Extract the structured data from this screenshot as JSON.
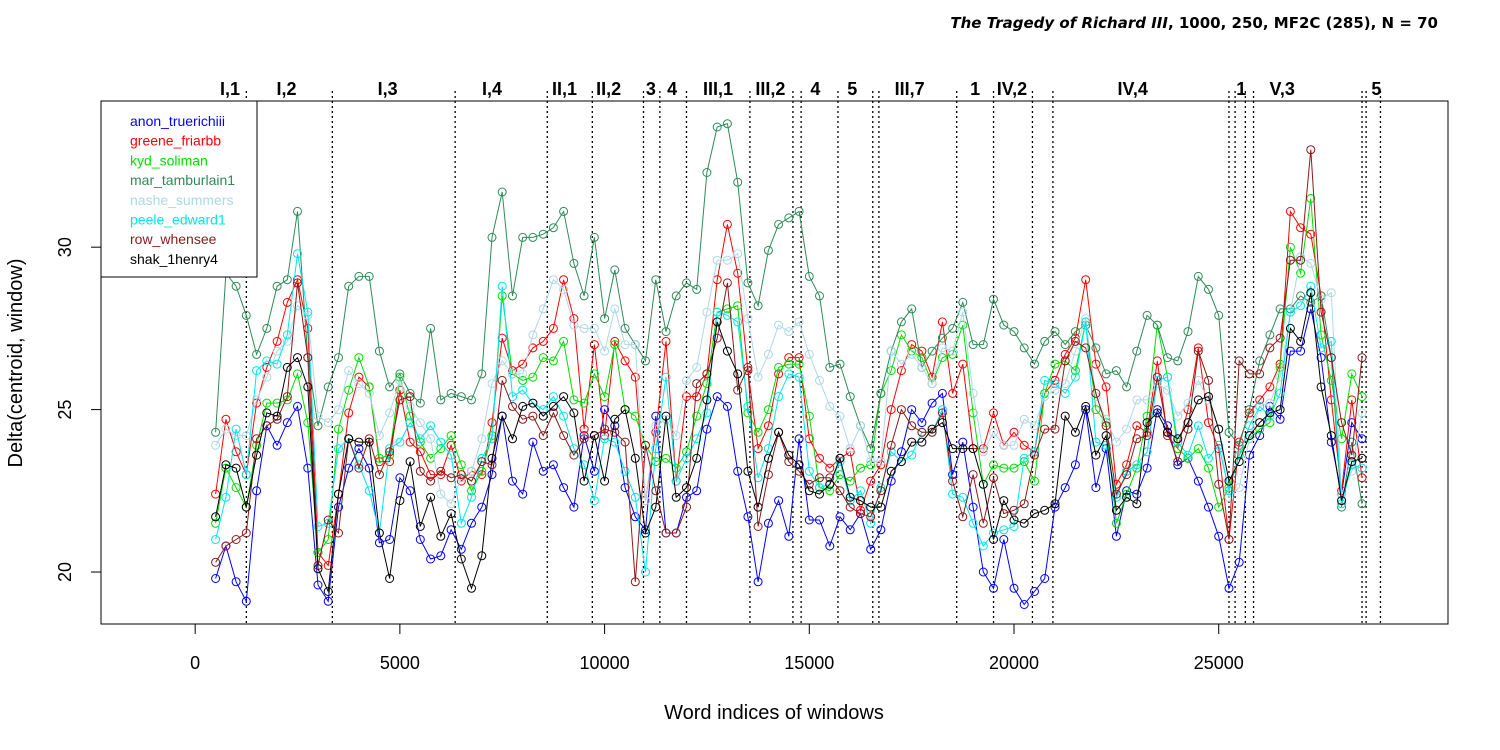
{
  "chart_data": {
    "type": "line",
    "title_italic": "The Tragedy of Richard III",
    "title_rest": ", 1000, 250, MF2C (285), N = 70",
    "xlabel": "Word indices of windows",
    "ylabel": "Delta(centroid, window)",
    "xlim": [
      -2300,
      30600
    ],
    "ylim": [
      18.4,
      34.5
    ],
    "x_ticks": [
      0,
      5000,
      10000,
      15000,
      20000,
      25000
    ],
    "y_ticks": [
      20,
      25,
      30
    ],
    "grid": false,
    "legend_position": "top-left",
    "scene_boundaries": [
      1250,
      3350,
      6350,
      8600,
      9700,
      10950,
      11350,
      12000,
      13550,
      14600,
      14800,
      15700,
      16550,
      16700,
      18600,
      19500,
      20450,
      20950,
      25250,
      25400,
      25650,
      25850,
      28500,
      28600,
      28950
    ],
    "scene_labels": [
      {
        "label": "I,1",
        "x": 850
      },
      {
        "label": "I,2",
        "x": 2230
      },
      {
        "label": "I,3",
        "x": 4700
      },
      {
        "label": "I,4",
        "x": 7250
      },
      {
        "label": "II,1",
        "x": 9020
      },
      {
        "label": "II,2",
        "x": 10100
      },
      {
        "label": "3",
        "x": 11130
      },
      {
        "label": "4",
        "x": 11650
      },
      {
        "label": "III,1",
        "x": 12770
      },
      {
        "label": "III,2",
        "x": 14050
      },
      {
        "label": "4",
        "x": 15150
      },
      {
        "label": "5",
        "x": 16050
      },
      {
        "label": "III,7",
        "x": 17450
      },
      {
        "label": "1",
        "x": 19050
      },
      {
        "label": "IV,2",
        "x": 19950
      },
      {
        "label": "IV,4",
        "x": 22900
      },
      {
        "label": "1",
        "x": 25550
      },
      {
        "label": "V,3",
        "x": 26550
      },
      {
        "label": "5",
        "x": 28850
      }
    ],
    "x": [
      500,
      750,
      1000,
      1250,
      1500,
      1750,
      2000,
      2250,
      2500,
      2750,
      3000,
      3250,
      3500,
      3750,
      4000,
      4250,
      4500,
      4750,
      5000,
      5250,
      5500,
      5750,
      6000,
      6250,
      6500,
      6750,
      7000,
      7250,
      7500,
      7750,
      8000,
      8250,
      8500,
      8750,
      9000,
      9250,
      9500,
      9750,
      10000,
      10250,
      10500,
      10750,
      11000,
      11250,
      11500,
      11750,
      12000,
      12250,
      12500,
      12750,
      13000,
      13250,
      13500,
      13750,
      14000,
      14250,
      14500,
      14750,
      15000,
      15250,
      15500,
      15750,
      16000,
      16250,
      16500,
      16750,
      17000,
      17250,
      17500,
      17750,
      18000,
      18250,
      18500,
      18750,
      19000,
      19250,
      19500,
      19750,
      20000,
      20250,
      20500,
      20750,
      21000,
      21250,
      21500,
      21750,
      22000,
      22250,
      22500,
      22750,
      23000,
      23250,
      23500,
      23750,
      24000,
      24250,
      24500,
      24750,
      25000,
      25250,
      25500,
      25750,
      26000,
      26250,
      26500,
      26750,
      27000,
      27250,
      27500,
      27750,
      28000,
      28250,
      28500
    ],
    "series": [
      {
        "name": "anon_truerichiii",
        "color": "#0000ff",
        "values": [
          19.8,
          20.8,
          19.7,
          19.1,
          22.5,
          24.5,
          23.9,
          24.6,
          25.1,
          23.2,
          19.6,
          19.1,
          22.0,
          23.2,
          23.8,
          23.2,
          20.9,
          21.0,
          22.9,
          22.5,
          21.0,
          20.4,
          20.5,
          21.3,
          20.7,
          21.5,
          22.0,
          23.0,
          24.8,
          22.8,
          22.4,
          24.0,
          23.1,
          23.3,
          22.6,
          22.0,
          24.2,
          23.1,
          25.0,
          24.5,
          22.6,
          21.7,
          21.3,
          24.8,
          21.2,
          21.2,
          22.3,
          22.5,
          24.4,
          25.4,
          25.1,
          23.1,
          21.7,
          19.7,
          21.5,
          22.2,
          21.1,
          24.1,
          21.6,
          21.6,
          20.8,
          21.7,
          21.3,
          21.8,
          20.7,
          21.3,
          22.8,
          23.7,
          25.0,
          24.6,
          25.2,
          25.5,
          23.0,
          24.0,
          22.0,
          20.0,
          19.5,
          21.0,
          19.5,
          19.0,
          19.4,
          19.8,
          22.0,
          22.6,
          23.3,
          25.0,
          22.6,
          23.8,
          21.1,
          22.5,
          22.4,
          23.2,
          25.0,
          24.5,
          23.3,
          23.5,
          22.8,
          22.0,
          21.1,
          19.5,
          20.3,
          23.6,
          24.2,
          25.1,
          24.7,
          26.8,
          26.8,
          28.1,
          26.6,
          24.0,
          22.4,
          24.6,
          24.1
        ]
      },
      {
        "name": "greene_friarbb",
        "color": "#ff0000",
        "values": [
          22.4,
          24.7,
          23.7,
          23.0,
          25.2,
          26.3,
          27.1,
          28.3,
          29.0,
          27.5,
          20.6,
          20.2,
          22.4,
          24.9,
          26.0,
          25.7,
          23.4,
          23.4,
          25.6,
          24.0,
          23.7,
          23.0,
          23.0,
          23.9,
          22.8,
          23.1,
          23.0,
          24.6,
          27.2,
          26.2,
          26.4,
          26.9,
          27.1,
          27.5,
          29.0,
          27.8,
          24.4,
          27.0,
          24.2,
          27.1,
          26.5,
          26.0,
          22.2,
          24.3,
          27.1,
          22.8,
          25.4,
          25.4,
          26.1,
          29.0,
          30.7,
          29.2,
          26.2,
          23.8,
          24.5,
          26.1,
          26.6,
          26.6,
          24.1,
          23.5,
          23.2,
          23.5,
          23.7,
          21.9,
          22.8,
          23.3,
          25.0,
          26.2,
          27.0,
          26.8,
          26.0,
          27.7,
          25.5,
          26.4,
          23.8,
          23.8,
          24.9,
          23.9,
          24.3,
          23.9,
          23.7,
          25.5,
          25.9,
          26.7,
          27.2,
          29.0,
          26.4,
          25.7,
          22.7,
          23.3,
          24.5,
          24.3,
          26.5,
          24.2,
          23.8,
          25.0,
          26.9,
          24.6,
          23.8,
          21.0,
          24.0,
          24.9,
          25.3,
          25.7,
          26.4,
          31.1,
          30.6,
          30.4,
          28.5,
          25.3,
          22.5,
          25.3,
          22.9
        ]
      },
      {
        "name": "kyd_soliman",
        "color": "#00dd00",
        "values": [
          21.5,
          23.2,
          22.6,
          22.0,
          23.9,
          25.2,
          25.2,
          25.3,
          26.1,
          24.6,
          20.6,
          21.0,
          24.4,
          25.6,
          26.6,
          25.7,
          23.5,
          23.6,
          26.0,
          24.8,
          24.0,
          23.5,
          23.8,
          24.2,
          23.3,
          22.5,
          23.1,
          24.2,
          28.5,
          26.1,
          25.9,
          26.0,
          26.6,
          26.5,
          27.1,
          25.3,
          25.2,
          26.1,
          25.4,
          27.0,
          25.0,
          24.8,
          23.9,
          23.4,
          23.5,
          23.2,
          23.7,
          24.8,
          25.8,
          28.0,
          28.1,
          28.2,
          24.9,
          24.3,
          25.0,
          26.3,
          26.4,
          26.4,
          24.8,
          22.6,
          22.5,
          23.0,
          22.8,
          23.2,
          23.3,
          25.5,
          26.2,
          27.3,
          26.8,
          26.6,
          25.8,
          26.6,
          26.7,
          27.6,
          24.9,
          22.7,
          23.3,
          23.2,
          23.2,
          23.4,
          22.8,
          25.5,
          26.4,
          26.5,
          26.2,
          27.7,
          25.0,
          24.6,
          21.5,
          22.4,
          23.2,
          24.8,
          27.6,
          26.0,
          23.8,
          23.5,
          23.8,
          23.2,
          22.0,
          22.6,
          23.6,
          24.1,
          24.4,
          24.6,
          26.3,
          30.0,
          29.2,
          31.5,
          27.3,
          25.9,
          24.1,
          26.1,
          25.4
        ]
      },
      {
        "name": "mar_tamburlain1",
        "color": "#2e8b57",
        "values": [
          24.3,
          29.2,
          28.8,
          27.9,
          26.7,
          27.5,
          28.8,
          29.0,
          31.1,
          26.6,
          24.5,
          25.7,
          26.6,
          28.8,
          29.1,
          29.1,
          26.8,
          25.7,
          26.1,
          25.5,
          25.2,
          27.5,
          25.3,
          25.5,
          25.4,
          25.3,
          26.1,
          30.3,
          31.7,
          28.5,
          30.3,
          30.3,
          30.4,
          30.6,
          31.1,
          29.5,
          28.5,
          30.3,
          27.8,
          29.3,
          27.5,
          27.0,
          26.5,
          29.0,
          27.4,
          28.5,
          28.9,
          28.7,
          32.3,
          33.7,
          33.8,
          32.0,
          28.9,
          28.2,
          29.9,
          30.7,
          30.9,
          31.1,
          29.1,
          28.5,
          26.3,
          26.4,
          25.4,
          24.5,
          23.8,
          25.5,
          26.8,
          27.7,
          28.1,
          26.3,
          26.8,
          27.2,
          27.5,
          28.3,
          27.0,
          27.0,
          28.4,
          27.6,
          27.4,
          26.9,
          26.4,
          27.1,
          27.4,
          27.0,
          27.4,
          27.6,
          26.9,
          26.1,
          26.2,
          25.7,
          26.8,
          27.9,
          27.6,
          26.6,
          26.5,
          27.4,
          29.1,
          28.7,
          27.9,
          24.3,
          23.9,
          25.0,
          26.5,
          27.3,
          28.1,
          28.1,
          28.5,
          28.3,
          28.5,
          26.6,
          22.0,
          24.0,
          22.1
        ]
      },
      {
        "name": "nashe_summers",
        "color": "#add8e6",
        "values": [
          23.9,
          24.4,
          24.2,
          24.2,
          25.3,
          26.0,
          26.8,
          27.1,
          28.2,
          27.9,
          24.8,
          24.6,
          25.0,
          26.2,
          25.8,
          25.5,
          24.2,
          24.9,
          25.9,
          25.1,
          24.6,
          24.1,
          22.4,
          22.1,
          22.9,
          23.1,
          24.1,
          25.8,
          26.5,
          26.1,
          26.1,
          27.3,
          28.1,
          29.0,
          28.7,
          27.6,
          27.5,
          27.5,
          26.8,
          28.1,
          27.0,
          27.0,
          22.2,
          24.5,
          24.7,
          24.2,
          25.9,
          26.3,
          28.0,
          29.6,
          29.6,
          29.8,
          27.8,
          26.0,
          26.7,
          27.6,
          27.4,
          27.7,
          26.7,
          25.9,
          25.1,
          24.8,
          23.8,
          24.5,
          23.4,
          23.4,
          26.8,
          26.4,
          26.7,
          26.3,
          25.8,
          26.9,
          26.8,
          28.0,
          25.5,
          23.7,
          24.3,
          23.9,
          23.9,
          24.7,
          24.5,
          25.4,
          25.6,
          25.8,
          26.8,
          27.8,
          25.4,
          24.7,
          24.0,
          24.4,
          25.3,
          25.3,
          25.8,
          25.6,
          24.8,
          25.2,
          25.9,
          25.3,
          24.4,
          22.3,
          22.6,
          24.1,
          25.1,
          25.2,
          26.0,
          28.0,
          29.7,
          29.5,
          28.4,
          28.6,
          22.4,
          23.1,
          24.9
        ]
      },
      {
        "name": "peele_edward1",
        "color": "#00e5ee",
        "values": [
          21.0,
          22.3,
          24.4,
          23.0,
          26.2,
          26.5,
          26.4,
          27.3,
          29.8,
          28.0,
          21.4,
          21.5,
          23.8,
          24.1,
          23.3,
          22.5,
          21.2,
          23.8,
          24.0,
          24.6,
          24.1,
          24.5,
          24.0,
          23.6,
          21.5,
          22.3,
          23.5,
          24.1,
          28.8,
          25.4,
          25.6,
          25.2,
          25.0,
          25.4,
          24.8,
          23.8,
          23.3,
          22.2,
          24.1,
          24.0,
          23.1,
          22.3,
          20.0,
          23.8,
          26.0,
          22.8,
          23.5,
          24.1,
          24.9,
          28.0,
          27.9,
          27.7,
          25.1,
          22.9,
          23.8,
          25.4,
          26.1,
          26.0,
          23.1,
          22.6,
          22.7,
          23.4,
          22.2,
          22.5,
          21.5,
          22.6,
          23.7,
          23.4,
          23.6,
          24.3,
          24.3,
          25.0,
          22.4,
          22.3,
          21.5,
          20.8,
          21.2,
          21.3,
          21.4,
          23.5,
          23.7,
          25.9,
          25.8,
          25.5,
          26.0,
          27.7,
          24.0,
          23.9,
          22.3,
          23.1,
          23.3,
          23.7,
          25.9,
          26.0,
          24.0,
          23.6,
          24.5,
          23.5,
          23.9,
          22.5,
          23.6,
          24.5,
          25.1,
          24.8,
          25.5,
          28.0,
          28.2,
          28.8,
          26.9,
          27.1,
          22.1,
          23.3,
          23.2
        ]
      },
      {
        "name": "row_whensee",
        "color": "#8b1a1a",
        "values": [
          20.3,
          20.8,
          21.0,
          21.2,
          24.1,
          24.5,
          24.7,
          25.4,
          28.9,
          26.6,
          20.2,
          21.6,
          21.2,
          24.1,
          23.2,
          24.1,
          23.0,
          23.7,
          25.3,
          25.4,
          23.1,
          22.8,
          23.1,
          22.9,
          23.0,
          22.8,
          23.4,
          23.3,
          25.9,
          25.1,
          24.7,
          24.8,
          24.2,
          24.9,
          24.2,
          23.6,
          24.1,
          24.2,
          24.4,
          24.3,
          24.0,
          19.7,
          23.9,
          22.5,
          21.2,
          21.2,
          22.0,
          25.8,
          26.1,
          27.2,
          28.9,
          25.6,
          26.3,
          21.4,
          23.0,
          24.3,
          23.4,
          23.1,
          22.7,
          22.9,
          22.9,
          22.5,
          22.0,
          21.8,
          21.7,
          22.5,
          23.9,
          25.0,
          24.5,
          24.3,
          24.3,
          24.9,
          22.8,
          21.7,
          23.0,
          21.5,
          22.9,
          21.8,
          21.9,
          22.1,
          23.6,
          24.4,
          24.4,
          26.5,
          27.1,
          26.9,
          25.5,
          24.5,
          22.4,
          23.0,
          24.1,
          24.2,
          26.0,
          24.3,
          23.4,
          24.4,
          26.8,
          25.9,
          22.7,
          21.0,
          26.5,
          26.1,
          26.1,
          26.9,
          27.2,
          29.6,
          29.6,
          33.0,
          28.0,
          26.6,
          24.6,
          23.6,
          26.6
        ]
      },
      {
        "name": "shak_1henry4",
        "color": "#000000",
        "values": [
          21.7,
          23.3,
          23.2,
          22.0,
          23.6,
          24.9,
          24.8,
          26.3,
          26.6,
          25.7,
          20.1,
          19.4,
          22.4,
          24.1,
          24.0,
          24.0,
          21.2,
          19.8,
          22.2,
          23.4,
          21.4,
          22.3,
          21.1,
          21.8,
          20.4,
          19.5,
          20.5,
          23.5,
          24.8,
          24.1,
          25.1,
          25.2,
          24.8,
          25.1,
          25.4,
          24.9,
          22.8,
          24.2,
          22.8,
          24.7,
          25.0,
          23.5,
          21.2,
          22.0,
          24.8,
          22.3,
          22.6,
          23.5,
          25.3,
          27.7,
          26.8,
          26.1,
          23.1,
          22.0,
          23.5,
          24.3,
          23.6,
          23.3,
          22.5,
          22.4,
          22.7,
          23.5,
          22.3,
          22.2,
          22.0,
          22.0,
          23.1,
          23.4,
          24.0,
          24.0,
          24.4,
          24.6,
          23.8,
          23.8,
          23.8,
          22.7,
          21.0,
          22.2,
          21.6,
          21.5,
          21.8,
          21.9,
          22.1,
          24.8,
          24.3,
          25.1,
          23.6,
          24.2,
          21.9,
          22.3,
          22.1,
          24.6,
          24.9,
          24.3,
          24.1,
          24.6,
          25.3,
          25.4,
          24.4,
          22.8,
          23.4,
          24.2,
          24.6,
          24.9,
          25.0,
          27.5,
          27.1,
          28.6,
          25.7,
          24.2,
          22.2,
          23.4,
          23.5
        ]
      }
    ]
  }
}
